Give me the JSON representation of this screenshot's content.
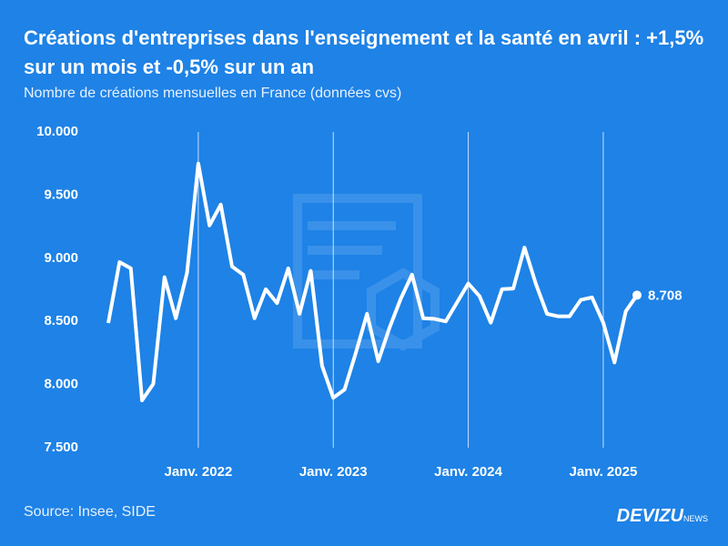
{
  "chart_data": {
    "type": "line",
    "title": "Créations d'entreprises dans l'enseignement et la santé en avril : +1,5% sur un mois et -0,5% sur un an",
    "subtitle": "Nombre de créations mensuelles en France (données cvs)",
    "source": "Source: Insee, SIDE",
    "brand": "DEVIZU",
    "brand_suffix": "NEWS",
    "categories": [
      null,
      null,
      null,
      null,
      null,
      null,
      null,
      null,
      "Janv. 2022",
      null,
      null,
      null,
      null,
      null,
      null,
      null,
      null,
      null,
      null,
      null,
      "Janv. 2023",
      null,
      null,
      null,
      null,
      null,
      null,
      null,
      null,
      null,
      null,
      null,
      "Janv. 2024",
      null,
      null,
      null,
      null,
      null,
      null,
      null,
      null,
      null,
      null,
      null,
      "Janv. 2025",
      null,
      null,
      null
    ],
    "series": [
      {
        "name": "Créations",
        "color": "#ffffff",
        "values": [
          8487,
          8970,
          8920,
          7875,
          8005,
          8850,
          8525,
          8885,
          9750,
          9260,
          9425,
          8935,
          8870,
          8525,
          8755,
          8645,
          8920,
          8560,
          8900,
          8150,
          7895,
          7960,
          8250,
          8560,
          8185,
          8450,
          8680,
          8870,
          8525,
          8520,
          8500,
          8650,
          8800,
          8700,
          8490,
          8755,
          8760,
          9085,
          8800,
          8560,
          8540,
          8540,
          8670,
          8690,
          8490,
          8175,
          8580,
          8708
        ],
        "last_value_label": "8.708"
      }
    ],
    "ylim": [
      7500,
      10000
    ],
    "yticks": [
      {
        "value": 7500,
        "label": "7.500"
      },
      {
        "value": 8000,
        "label": "8.000"
      },
      {
        "value": 8500,
        "label": "8.500"
      },
      {
        "value": 9000,
        "label": "9.000"
      },
      {
        "value": 9500,
        "label": "9.500"
      },
      {
        "value": 10000,
        "label": "10.000"
      }
    ],
    "grid": "x-categories"
  }
}
